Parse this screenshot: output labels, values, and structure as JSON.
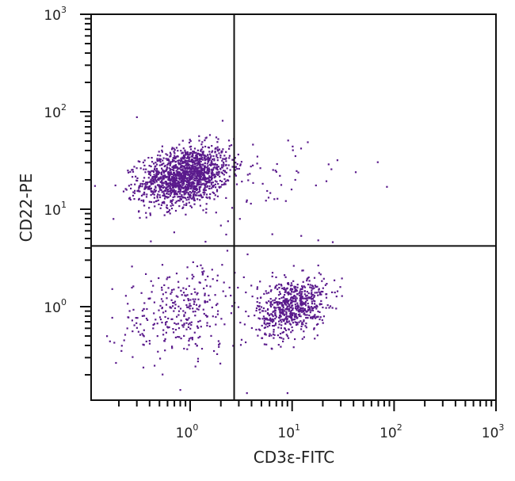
{
  "chart_data": {
    "type": "scatter",
    "title": "",
    "xlabel": "CD3ε-FITC",
    "ylabel": "CD22-PE",
    "xscale": "log",
    "yscale": "log",
    "xlim": [
      0.113,
      1000
    ],
    "ylim": [
      0.07,
      1000
    ],
    "x_ticks": [
      {
        "value": 1,
        "base": "10",
        "exp": "0"
      },
      {
        "value": 10,
        "base": "10",
        "exp": "1"
      },
      {
        "value": 100,
        "base": "10",
        "exp": "2"
      },
      {
        "value": 1000,
        "base": "10",
        "exp": "3"
      }
    ],
    "y_ticks": [
      {
        "value": 1,
        "base": "10",
        "exp": "0"
      },
      {
        "value": 10,
        "base": "10",
        "exp": "1"
      },
      {
        "value": 100,
        "base": "10",
        "exp": "2"
      },
      {
        "value": 1000,
        "base": "10",
        "exp": "3"
      }
    ],
    "grid": false,
    "legend": null,
    "point_color": "#5a1a8c",
    "quadrant_gates": {
      "x": 2.7,
      "y": 4.2
    },
    "populations": [
      {
        "name": "CD22+ CD3ε- (B cells, upper-left)",
        "center_x": 0.9,
        "center_y": 22,
        "spread_log_x": 0.22,
        "spread_log_y": 0.17,
        "count": 1500
      },
      {
        "name": "CD22- CD3ε+ (T cells, lower-right)",
        "center_x": 10,
        "center_y": 1.0,
        "spread_log_x": 0.17,
        "spread_log_y": 0.17,
        "count": 650
      },
      {
        "name": "CD22- CD3ε- (double negative, lower-left)",
        "center_x": 0.85,
        "center_y": 0.9,
        "spread_log_x": 0.32,
        "spread_log_y": 0.28,
        "count": 330
      },
      {
        "name": "sparse upper-right events",
        "center_x": 6,
        "center_y": 18,
        "spread_log_x": 0.35,
        "spread_log_y": 0.25,
        "count": 45
      }
    ],
    "outliers": [
      {
        "x": 42,
        "y": 24
      },
      {
        "x": 85,
        "y": 17
      },
      {
        "x": 0.3,
        "y": 88
      },
      {
        "x": 9,
        "y": 0.13
      },
      {
        "x": 0.8,
        "y": 0.14
      },
      {
        "x": 3.6,
        "y": 0.13
      },
      {
        "x": 18,
        "y": 4.8
      },
      {
        "x": 25,
        "y": 4.6
      }
    ]
  }
}
